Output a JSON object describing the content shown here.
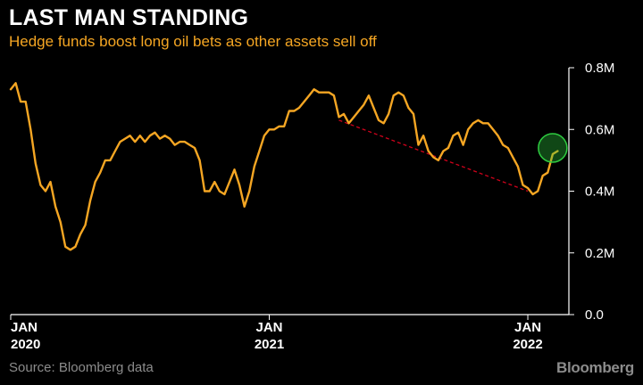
{
  "chart_data": {
    "type": "line",
    "title": "LAST MAN STANDING",
    "subtitle": "Hedge funds boost long oil bets as other assets sell off",
    "source": "Source: Bloomberg data",
    "brand": "Bloomberg",
    "y_ticks": [
      {
        "value": 0.0,
        "label": "0.0"
      },
      {
        "value": 0.2,
        "label": "0.2M"
      },
      {
        "value": 0.4,
        "label": "0.4M"
      },
      {
        "value": 0.6,
        "label": "0.6M"
      },
      {
        "value": 0.8,
        "label": "0.8M"
      }
    ],
    "ylim": [
      0,
      0.8
    ],
    "x_ticks": [
      {
        "value": 0,
        "line1": "JAN",
        "line2": "2020"
      },
      {
        "value": 52,
        "line1": "JAN",
        "line2": "2021"
      },
      {
        "value": 104,
        "line1": "JAN",
        "line2": "2022"
      }
    ],
    "xlim": [
      0,
      111
    ],
    "legend": "none",
    "grid": false,
    "colors": {
      "line": "#f5a623",
      "trend": "#d0021b",
      "circle": "#2ecc40",
      "axis": "#ffffff"
    },
    "series": [
      {
        "values": [
          0.73,
          0.75,
          0.69,
          0.69,
          0.6,
          0.49,
          0.42,
          0.4,
          0.43,
          0.35,
          0.3,
          0.22,
          0.21,
          0.22,
          0.26,
          0.29,
          0.37,
          0.43,
          0.46,
          0.5,
          0.5,
          0.53,
          0.56,
          0.57,
          0.58,
          0.56,
          0.58,
          0.56,
          0.58,
          0.59,
          0.57,
          0.58,
          0.57,
          0.55,
          0.56,
          0.56,
          0.55,
          0.54,
          0.5,
          0.4,
          0.4,
          0.43,
          0.4,
          0.39,
          0.43,
          0.47,
          0.42,
          0.35,
          0.4,
          0.48,
          0.53,
          0.58,
          0.6,
          0.6,
          0.61,
          0.61,
          0.66,
          0.66,
          0.67,
          0.69,
          0.71,
          0.73,
          0.72,
          0.72,
          0.72,
          0.71,
          0.64,
          0.65,
          0.62,
          0.64,
          0.66,
          0.68,
          0.71,
          0.67,
          0.63,
          0.62,
          0.65,
          0.71,
          0.72,
          0.71,
          0.67,
          0.65,
          0.55,
          0.58,
          0.53,
          0.51,
          0.5,
          0.53,
          0.54,
          0.58,
          0.59,
          0.55,
          0.6,
          0.62,
          0.63,
          0.62,
          0.62,
          0.6,
          0.58,
          0.55,
          0.54,
          0.51,
          0.48,
          0.42,
          0.41,
          0.39,
          0.4,
          0.45,
          0.46,
          0.52,
          0.53
        ]
      }
    ],
    "trendline": {
      "from": {
        "x": 66,
        "y": 0.63
      },
      "to": {
        "x": 104,
        "y": 0.4
      }
    },
    "highlight": {
      "x": 109,
      "y": 0.54
    }
  }
}
